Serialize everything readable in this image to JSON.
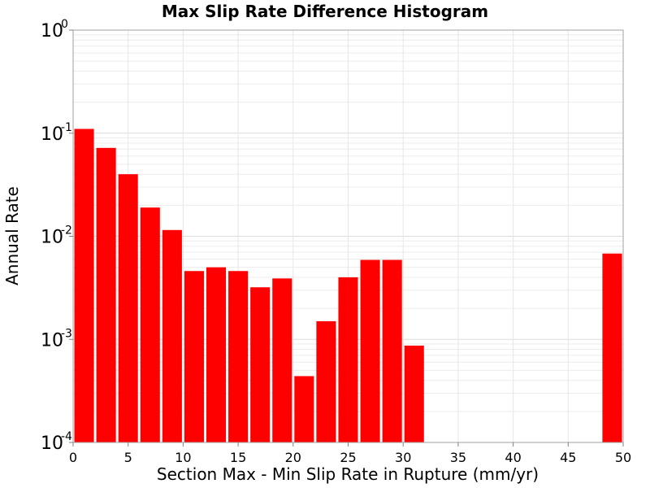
{
  "chart_data": {
    "type": "bar",
    "title": "Max Slip Rate Difference Histogram",
    "xlabel": "Section Max - Min Slip Rate in Rupture (mm/yr)",
    "ylabel": "Annual Rate",
    "xlim": [
      0,
      50
    ],
    "ylim": [
      0.0001,
      1
    ],
    "yscale": "log",
    "grid": true,
    "bar_color": "#ff0000",
    "bin_width": 2,
    "x_ticks": [
      0,
      5,
      10,
      15,
      20,
      25,
      30,
      35,
      40,
      45,
      50
    ],
    "y_ticks": [
      {
        "value": 0.0001,
        "base": "10",
        "exp": "-4"
      },
      {
        "value": 0.001,
        "base": "10",
        "exp": "-3"
      },
      {
        "value": 0.01,
        "base": "10",
        "exp": "-2"
      },
      {
        "value": 0.1,
        "base": "10",
        "exp": "-1"
      },
      {
        "value": 1,
        "base": "10",
        "exp": "0"
      }
    ],
    "bars": [
      {
        "x": 1,
        "value": 0.11
      },
      {
        "x": 3,
        "value": 0.072
      },
      {
        "x": 5,
        "value": 0.04
      },
      {
        "x": 7,
        "value": 0.019
      },
      {
        "x": 9,
        "value": 0.0115
      },
      {
        "x": 11,
        "value": 0.0046
      },
      {
        "x": 13,
        "value": 0.005
      },
      {
        "x": 15,
        "value": 0.0046
      },
      {
        "x": 17,
        "value": 0.0032
      },
      {
        "x": 19,
        "value": 0.0039
      },
      {
        "x": 21,
        "value": 0.00044
      },
      {
        "x": 23,
        "value": 0.0015
      },
      {
        "x": 25,
        "value": 0.004
      },
      {
        "x": 27,
        "value": 0.0059
      },
      {
        "x": 29,
        "value": 0.0059
      },
      {
        "x": 31,
        "value": 0.00087
      },
      {
        "x": 49,
        "value": 0.0068
      }
    ]
  }
}
